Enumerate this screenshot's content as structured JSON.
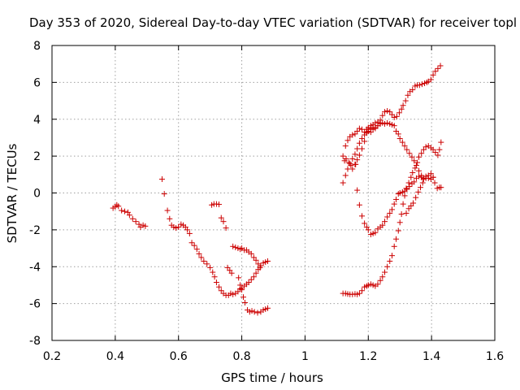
{
  "chart_data": {
    "type": "scatter",
    "title": "Day 353 of 2020, Sidereal Day-to-day VTEC variation (SDTVAR) for receiver topl",
    "xlabel": "GPS time / hours",
    "ylabel": "SDTVAR / TECUs",
    "xlim": [
      0.2,
      1.6
    ],
    "ylim": [
      -8,
      8
    ],
    "x_ticks": [
      0.2,
      0.4,
      0.6,
      0.8,
      1.0,
      1.2,
      1.4,
      1.6
    ],
    "x_tick_labels": [
      "0.2",
      "0.4",
      "0.6",
      "0.8",
      "1",
      "1.2",
      "1.4",
      "1.6"
    ],
    "y_ticks": [
      -8,
      -6,
      -4,
      -2,
      0,
      2,
      4,
      6,
      8
    ],
    "y_tick_labels": [
      "-8",
      "-6",
      "-4",
      "-2",
      "0",
      "2",
      "4",
      "6",
      "8"
    ],
    "grid": true,
    "marker": "+",
    "marker_color": "#cc0000",
    "series": [
      {
        "name": "SDTVAR",
        "points": [
          [
            0.393,
            -0.82
          ],
          [
            0.4,
            -0.75
          ],
          [
            0.405,
            -0.65
          ],
          [
            0.41,
            -0.72
          ],
          [
            0.42,
            -0.95
          ],
          [
            0.43,
            -1.0
          ],
          [
            0.44,
            -1.05
          ],
          [
            0.445,
            -1.2
          ],
          [
            0.455,
            -1.4
          ],
          [
            0.465,
            -1.55
          ],
          [
            0.475,
            -1.7
          ],
          [
            0.48,
            -1.85
          ],
          [
            0.488,
            -1.75
          ],
          [
            0.495,
            -1.8
          ],
          [
            0.548,
            0.75
          ],
          [
            0.555,
            -0.05
          ],
          [
            0.565,
            -0.95
          ],
          [
            0.572,
            -1.4
          ],
          [
            0.578,
            -1.75
          ],
          [
            0.585,
            -1.85
          ],
          [
            0.592,
            -1.9
          ],
          [
            0.6,
            -1.85
          ],
          [
            0.608,
            -1.7
          ],
          [
            0.615,
            -1.75
          ],
          [
            0.622,
            -1.85
          ],
          [
            0.628,
            -2.0
          ],
          [
            0.635,
            -2.2
          ],
          [
            0.642,
            -2.7
          ],
          [
            0.65,
            -2.85
          ],
          [
            0.658,
            -3.05
          ],
          [
            0.665,
            -3.3
          ],
          [
            0.672,
            -3.5
          ],
          [
            0.68,
            -3.7
          ],
          [
            0.69,
            -3.85
          ],
          [
            0.7,
            -4.05
          ],
          [
            0.708,
            -4.3
          ],
          [
            0.714,
            -4.55
          ],
          [
            0.72,
            -4.85
          ],
          [
            0.728,
            -5.1
          ],
          [
            0.735,
            -5.3
          ],
          [
            0.742,
            -5.45
          ],
          [
            0.75,
            -5.55
          ],
          [
            0.758,
            -5.55
          ],
          [
            0.765,
            -5.45
          ],
          [
            0.772,
            -5.5
          ],
          [
            0.78,
            -5.45
          ],
          [
            0.788,
            -5.35
          ],
          [
            0.795,
            -5.2
          ],
          [
            0.8,
            -5.15
          ],
          [
            0.808,
            -5.05
          ],
          [
            0.815,
            -4.95
          ],
          [
            0.822,
            -4.85
          ],
          [
            0.83,
            -4.7
          ],
          [
            0.838,
            -4.55
          ],
          [
            0.845,
            -4.35
          ],
          [
            0.852,
            -4.15
          ],
          [
            0.86,
            -3.95
          ],
          [
            0.868,
            -3.8
          ],
          [
            0.875,
            -3.75
          ],
          [
            0.882,
            -3.7
          ],
          [
            0.705,
            -0.65
          ],
          [
            0.712,
            -0.6
          ],
          [
            0.72,
            -0.6
          ],
          [
            0.728,
            -0.62
          ],
          [
            0.735,
            -1.35
          ],
          [
            0.742,
            -1.55
          ],
          [
            0.75,
            -1.9
          ],
          [
            0.755,
            -4.05
          ],
          [
            0.762,
            -4.2
          ],
          [
            0.768,
            -4.35
          ],
          [
            0.772,
            -2.9
          ],
          [
            0.78,
            -2.95
          ],
          [
            0.788,
            -3.0
          ],
          [
            0.795,
            -3.05
          ],
          [
            0.8,
            -3.0
          ],
          [
            0.808,
            -3.1
          ],
          [
            0.815,
            -3.1
          ],
          [
            0.822,
            -3.2
          ],
          [
            0.83,
            -3.3
          ],
          [
            0.838,
            -3.5
          ],
          [
            0.845,
            -3.65
          ],
          [
            0.852,
            -3.85
          ],
          [
            0.858,
            -4.05
          ],
          [
            0.79,
            -4.6
          ],
          [
            0.795,
            -5.0
          ],
          [
            0.8,
            -5.25
          ],
          [
            0.805,
            -5.65
          ],
          [
            0.81,
            -5.95
          ],
          [
            0.818,
            -6.35
          ],
          [
            0.825,
            -6.45
          ],
          [
            0.832,
            -6.4
          ],
          [
            0.84,
            -6.45
          ],
          [
            0.85,
            -6.5
          ],
          [
            0.86,
            -6.45
          ],
          [
            0.868,
            -6.35
          ],
          [
            0.875,
            -6.3
          ],
          [
            0.882,
            -6.25
          ],
          [
            1.12,
            -5.45
          ],
          [
            1.128,
            -5.45
          ],
          [
            1.135,
            -5.48
          ],
          [
            1.142,
            -5.5
          ],
          [
            1.15,
            -5.5
          ],
          [
            1.158,
            -5.48
          ],
          [
            1.165,
            -5.5
          ],
          [
            1.172,
            -5.45
          ],
          [
            1.18,
            -5.3
          ],
          [
            1.188,
            -5.1
          ],
          [
            1.195,
            -5.05
          ],
          [
            1.2,
            -5.0
          ],
          [
            1.208,
            -4.95
          ],
          [
            1.215,
            -5.0
          ],
          [
            1.222,
            -5.05
          ],
          [
            1.23,
            -4.95
          ],
          [
            1.238,
            -4.75
          ],
          [
            1.245,
            -4.55
          ],
          [
            1.252,
            -4.3
          ],
          [
            1.26,
            -4.0
          ],
          [
            1.268,
            -3.7
          ],
          [
            1.275,
            -3.4
          ],
          [
            1.282,
            -2.9
          ],
          [
            1.288,
            -2.5
          ],
          [
            1.295,
            -2.05
          ],
          [
            1.3,
            -1.6
          ],
          [
            1.305,
            -1.15
          ],
          [
            1.31,
            -0.6
          ],
          [
            1.315,
            -0.15
          ],
          [
            1.32,
            0.25
          ],
          [
            1.328,
            0.55
          ],
          [
            1.335,
            0.85
          ],
          [
            1.34,
            1.1
          ],
          [
            1.348,
            1.35
          ],
          [
            1.355,
            1.65
          ],
          [
            1.36,
            1.95
          ],
          [
            1.368,
            2.15
          ],
          [
            1.375,
            2.35
          ],
          [
            1.382,
            2.5
          ],
          [
            1.39,
            2.55
          ],
          [
            1.398,
            2.45
          ],
          [
            1.405,
            2.35
          ],
          [
            1.412,
            2.2
          ],
          [
            1.42,
            2.05
          ],
          [
            1.425,
            2.35
          ],
          [
            1.43,
            2.75
          ],
          [
            1.12,
            0.55
          ],
          [
            1.128,
            0.95
          ],
          [
            1.135,
            1.3
          ],
          [
            1.142,
            1.6
          ],
          [
            1.15,
            1.85
          ],
          [
            1.158,
            2.1
          ],
          [
            1.165,
            2.4
          ],
          [
            1.172,
            2.7
          ],
          [
            1.18,
            2.95
          ],
          [
            1.188,
            3.15
          ],
          [
            1.195,
            3.3
          ],
          [
            1.2,
            3.35
          ],
          [
            1.208,
            3.5
          ],
          [
            1.215,
            3.55
          ],
          [
            1.222,
            3.55
          ],
          [
            1.23,
            3.65
          ],
          [
            1.238,
            3.75
          ],
          [
            1.245,
            3.8
          ],
          [
            1.252,
            3.75
          ],
          [
            1.26,
            3.8
          ],
          [
            1.268,
            3.75
          ],
          [
            1.275,
            3.7
          ],
          [
            1.282,
            3.65
          ],
          [
            1.288,
            3.35
          ],
          [
            1.295,
            3.2
          ],
          [
            1.3,
            2.95
          ],
          [
            1.308,
            2.75
          ],
          [
            1.315,
            2.55
          ],
          [
            1.322,
            2.35
          ],
          [
            1.33,
            2.15
          ],
          [
            1.338,
            1.95
          ],
          [
            1.345,
            1.75
          ],
          [
            1.352,
            1.5
          ],
          [
            1.36,
            1.2
          ],
          [
            1.368,
            0.95
          ],
          [
            1.375,
            0.75
          ],
          [
            1.382,
            0.8
          ],
          [
            1.39,
            0.95
          ],
          [
            1.398,
            1.05
          ],
          [
            1.405,
            0.85
          ],
          [
            1.41,
            0.55
          ],
          [
            1.418,
            0.25
          ],
          [
            1.425,
            0.3
          ],
          [
            1.43,
            0.3
          ],
          [
            1.12,
            2.0
          ],
          [
            1.125,
            1.75
          ],
          [
            1.13,
            1.85
          ],
          [
            1.138,
            1.65
          ],
          [
            1.145,
            1.5
          ],
          [
            1.15,
            1.3
          ],
          [
            1.158,
            1.55
          ],
          [
            1.165,
            1.8
          ],
          [
            1.172,
            2.05
          ],
          [
            1.18,
            2.4
          ],
          [
            1.188,
            2.8
          ],
          [
            1.195,
            3.25
          ],
          [
            1.2,
            3.45
          ],
          [
            1.208,
            3.3
          ],
          [
            1.215,
            3.45
          ],
          [
            1.222,
            3.5
          ],
          [
            1.23,
            3.65
          ],
          [
            1.238,
            3.95
          ],
          [
            1.245,
            4.2
          ],
          [
            1.252,
            4.4
          ],
          [
            1.26,
            4.45
          ],
          [
            1.268,
            4.4
          ],
          [
            1.275,
            4.25
          ],
          [
            1.282,
            4.1
          ],
          [
            1.29,
            4.15
          ],
          [
            1.298,
            4.35
          ],
          [
            1.305,
            4.55
          ],
          [
            1.31,
            4.75
          ],
          [
            1.318,
            5.0
          ],
          [
            1.325,
            5.3
          ],
          [
            1.332,
            5.5
          ],
          [
            1.34,
            5.6
          ],
          [
            1.348,
            5.8
          ],
          [
            1.355,
            5.85
          ],
          [
            1.362,
            5.85
          ],
          [
            1.37,
            5.9
          ],
          [
            1.378,
            5.95
          ],
          [
            1.385,
            6.0
          ],
          [
            1.39,
            6.05
          ],
          [
            1.398,
            6.15
          ],
          [
            1.405,
            6.4
          ],
          [
            1.412,
            6.6
          ],
          [
            1.42,
            6.75
          ],
          [
            1.428,
            6.9
          ],
          [
            1.128,
            2.55
          ],
          [
            1.135,
            2.85
          ],
          [
            1.142,
            3.05
          ],
          [
            1.15,
            3.15
          ],
          [
            1.158,
            3.2
          ],
          [
            1.165,
            3.35
          ],
          [
            1.172,
            3.5
          ],
          [
            1.18,
            3.45
          ],
          [
            1.188,
            3.3
          ],
          [
            1.195,
            3.45
          ],
          [
            1.2,
            3.55
          ],
          [
            1.208,
            3.65
          ],
          [
            1.215,
            3.7
          ],
          [
            1.222,
            3.8
          ],
          [
            1.23,
            3.85
          ],
          [
            1.238,
            3.8
          ],
          [
            1.16,
            1.55
          ],
          [
            1.165,
            0.15
          ],
          [
            1.172,
            -0.65
          ],
          [
            1.18,
            -1.25
          ],
          [
            1.188,
            -1.65
          ],
          [
            1.195,
            -1.85
          ],
          [
            1.2,
            -2.0
          ],
          [
            1.208,
            -2.25
          ],
          [
            1.215,
            -2.2
          ],
          [
            1.222,
            -2.15
          ],
          [
            1.23,
            -1.95
          ],
          [
            1.238,
            -1.85
          ],
          [
            1.245,
            -1.75
          ],
          [
            1.252,
            -1.55
          ],
          [
            1.26,
            -1.3
          ],
          [
            1.268,
            -1.1
          ],
          [
            1.275,
            -0.9
          ],
          [
            1.282,
            -0.6
          ],
          [
            1.288,
            -0.35
          ],
          [
            1.295,
            -0.05
          ],
          [
            1.3,
            0.0
          ],
          [
            1.308,
            0.05
          ],
          [
            1.315,
            0.1
          ],
          [
            1.322,
            0.2
          ],
          [
            1.33,
            0.35
          ],
          [
            1.338,
            0.5
          ],
          [
            1.345,
            0.6
          ],
          [
            1.352,
            0.8
          ],
          [
            1.36,
            0.9
          ],
          [
            1.368,
            0.85
          ],
          [
            1.375,
            0.8
          ],
          [
            1.382,
            0.9
          ],
          [
            1.39,
            0.8
          ],
          [
            1.398,
            0.75
          ],
          [
            1.405,
            0.85
          ],
          [
            1.32,
            -1.1
          ],
          [
            1.328,
            -0.85
          ],
          [
            1.335,
            -0.7
          ],
          [
            1.342,
            -0.55
          ],
          [
            1.35,
            -0.25
          ],
          [
            1.358,
            0.05
          ],
          [
            1.365,
            0.3
          ],
          [
            1.372,
            0.55
          ]
        ]
      }
    ]
  }
}
